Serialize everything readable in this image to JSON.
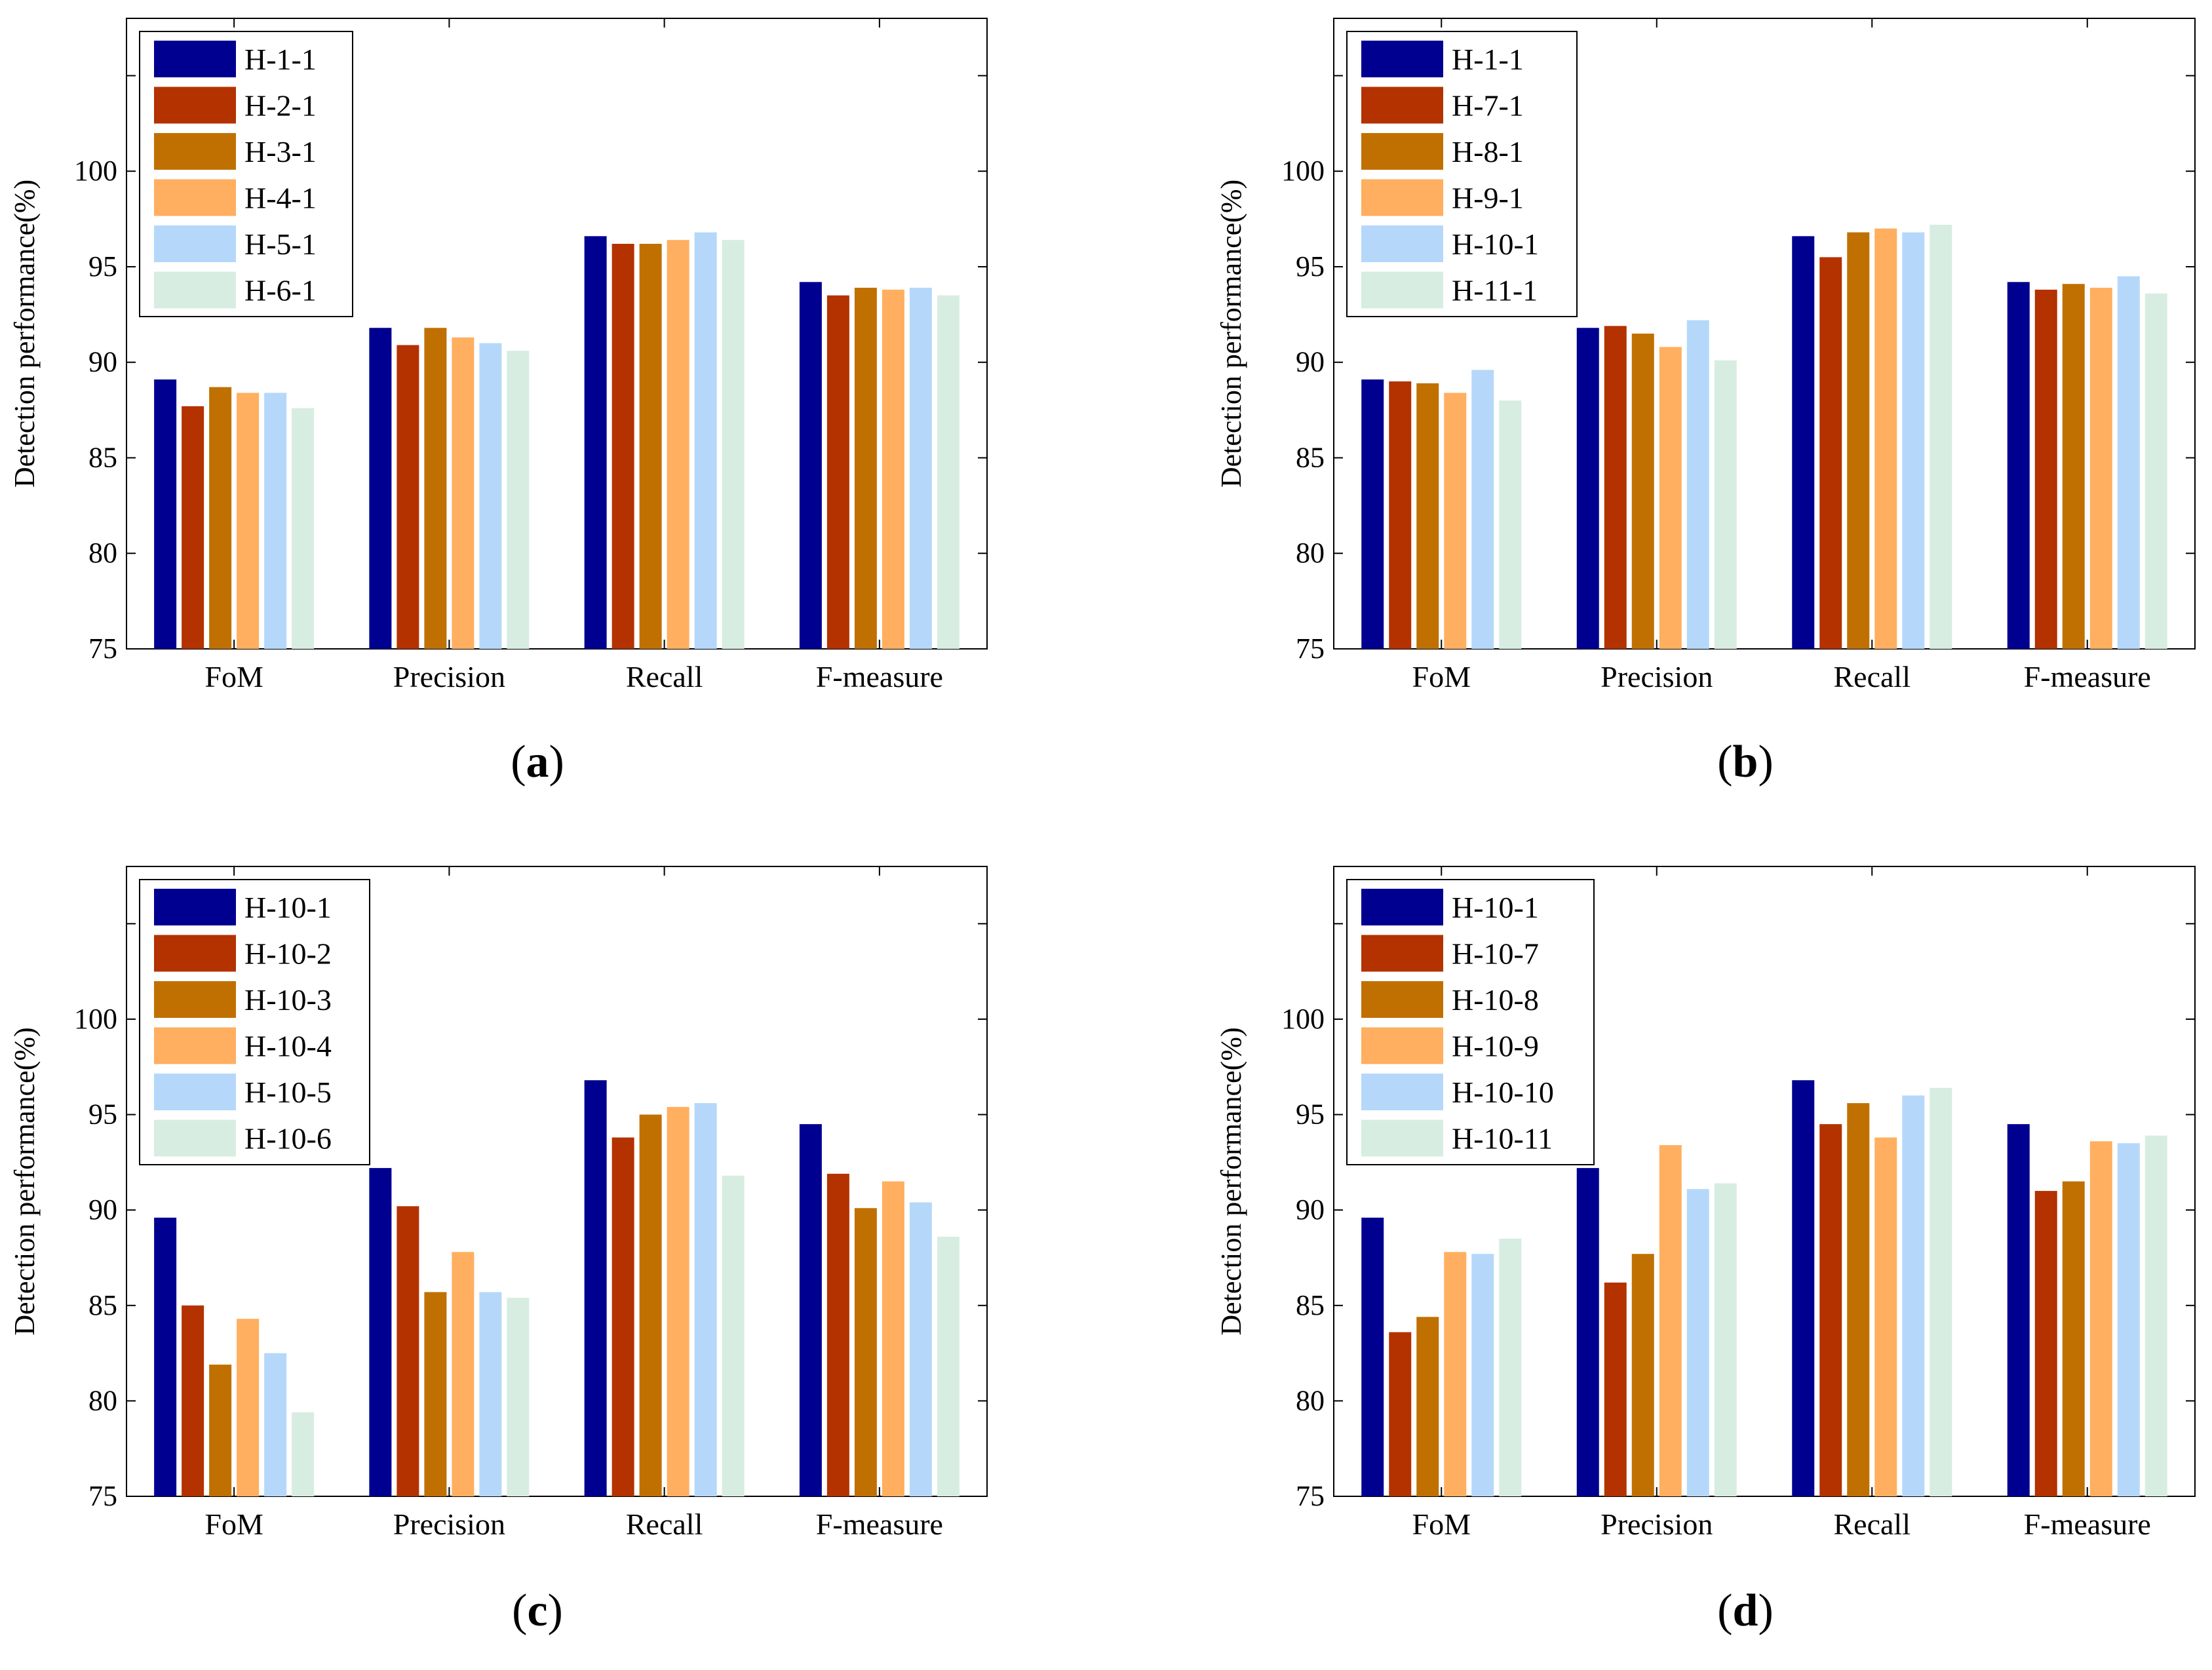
{
  "figure": {
    "panels_order": [
      "a",
      "b",
      "c",
      "d"
    ]
  },
  "colors": {
    "palette": [
      "#000090",
      "#B33200",
      "#C07000",
      "#FFAF5F",
      "#B5D8FA",
      "#D8EDE1"
    ],
    "axis": "#000000"
  },
  "chart_data": [
    {
      "type": "bar",
      "panel_label": "a",
      "caption": "(a)",
      "categories": [
        "FoM",
        "Precision",
        "Recall",
        "F-measure"
      ],
      "ylabel": "Detection performance(%)",
      "ylim": [
        75,
        108
      ],
      "yticks": [
        75,
        80,
        85,
        90,
        95,
        100
      ],
      "legend_position": "top-left",
      "series": [
        {
          "name": "H-1-1",
          "values": [
            89.1,
            91.8,
            96.6,
            94.2
          ]
        },
        {
          "name": "H-2-1",
          "values": [
            87.7,
            90.9,
            96.2,
            93.5
          ]
        },
        {
          "name": "H-3-1",
          "values": [
            88.7,
            91.8,
            96.2,
            93.9
          ]
        },
        {
          "name": "H-4-1",
          "values": [
            88.4,
            91.3,
            96.4,
            93.8
          ]
        },
        {
          "name": "H-5-1",
          "values": [
            88.4,
            91.0,
            96.8,
            93.9
          ]
        },
        {
          "name": "H-6-1",
          "values": [
            87.6,
            90.6,
            96.4,
            93.5
          ]
        }
      ]
    },
    {
      "type": "bar",
      "panel_label": "b",
      "caption": "(b)",
      "categories": [
        "FoM",
        "Precision",
        "Recall",
        "F-measure"
      ],
      "ylabel": "Detection performance(%)",
      "ylim": [
        75,
        108
      ],
      "yticks": [
        75,
        80,
        85,
        90,
        95,
        100
      ],
      "legend_position": "top-left",
      "series": [
        {
          "name": "H-1-1",
          "values": [
            89.1,
            91.8,
            96.6,
            94.2
          ]
        },
        {
          "name": "H-7-1",
          "values": [
            89.0,
            91.9,
            95.5,
            93.8
          ]
        },
        {
          "name": "H-8-1",
          "values": [
            88.9,
            91.5,
            96.8,
            94.1
          ]
        },
        {
          "name": "H-9-1",
          "values": [
            88.4,
            90.8,
            97.0,
            93.9
          ]
        },
        {
          "name": "H-10-1",
          "values": [
            89.6,
            92.2,
            96.8,
            94.5
          ]
        },
        {
          "name": "H-11-1",
          "values": [
            88.0,
            90.1,
            97.2,
            93.6
          ]
        }
      ]
    },
    {
      "type": "bar",
      "panel_label": "c",
      "caption": "(c)",
      "categories": [
        "FoM",
        "Precision",
        "Recall",
        "F-measure"
      ],
      "ylabel": "Detection performance(%)",
      "ylim": [
        75,
        108
      ],
      "yticks": [
        75,
        80,
        85,
        90,
        95,
        100
      ],
      "legend_position": "top-left",
      "series": [
        {
          "name": "H-10-1",
          "values": [
            89.6,
            92.2,
            96.8,
            94.5
          ]
        },
        {
          "name": "H-10-2",
          "values": [
            85.0,
            90.2,
            93.8,
            91.9
          ]
        },
        {
          "name": "H-10-3",
          "values": [
            81.9,
            85.7,
            95.0,
            90.1
          ]
        },
        {
          "name": "H-10-4",
          "values": [
            84.3,
            87.8,
            95.4,
            91.5
          ]
        },
        {
          "name": "H-10-5",
          "values": [
            82.5,
            85.7,
            95.6,
            90.4
          ]
        },
        {
          "name": "H-10-6",
          "values": [
            79.4,
            85.4,
            91.8,
            88.6
          ]
        }
      ]
    },
    {
      "type": "bar",
      "panel_label": "d",
      "caption": "(d)",
      "categories": [
        "FoM",
        "Precision",
        "Recall",
        "F-measure"
      ],
      "ylabel": "Detection performance(%)",
      "ylim": [
        75,
        108
      ],
      "yticks": [
        75,
        80,
        85,
        90,
        95,
        100
      ],
      "legend_position": "top-left",
      "series": [
        {
          "name": "H-10-1",
          "values": [
            89.6,
            92.2,
            96.8,
            94.5
          ]
        },
        {
          "name": "H-10-7",
          "values": [
            83.6,
            86.2,
            94.5,
            91.0
          ]
        },
        {
          "name": "H-10-8",
          "values": [
            84.4,
            87.7,
            95.6,
            91.5
          ]
        },
        {
          "name": "H-10-9",
          "values": [
            87.8,
            93.4,
            93.8,
            93.6
          ]
        },
        {
          "name": "H-10-10",
          "values": [
            87.7,
            91.1,
            96.0,
            93.5
          ]
        },
        {
          "name": "H-10-11",
          "values": [
            88.5,
            91.4,
            96.4,
            93.9
          ]
        }
      ]
    }
  ]
}
